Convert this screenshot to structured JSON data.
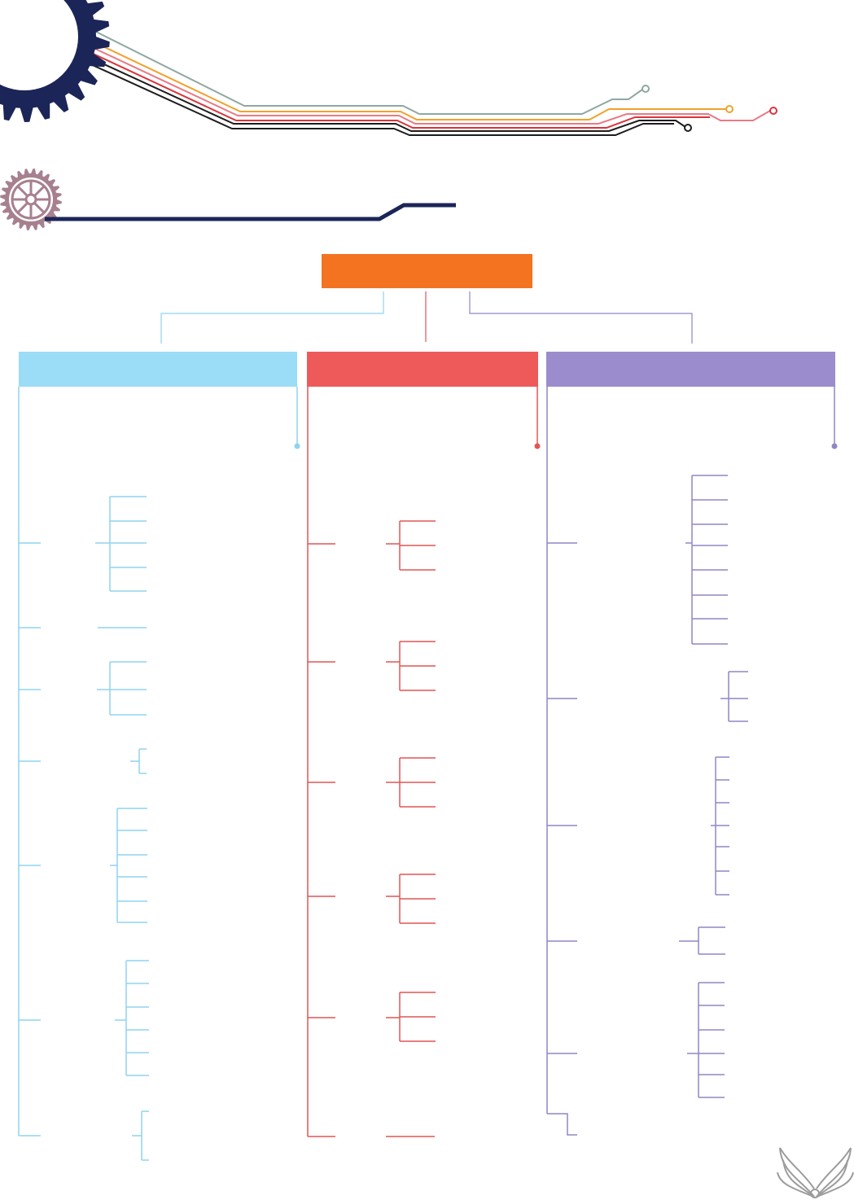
{
  "colors": {
    "navy": "#1b2557",
    "gear_mauve": "#a7808f",
    "root_orange": "#f37321",
    "blue": "#9bdcf7",
    "blue_line": "#8fd3ef",
    "red": "#ee5a5a",
    "red_line": "#e25555",
    "purple": "#9b8ccd",
    "purple_line": "#9186c4",
    "wire_gray": "#8fa8a0",
    "wire_orange": "#f2a12a",
    "wire_pink": "#e87a86",
    "wire_red": "#d9343b",
    "wire_black": "#1d1d1d",
    "wing_gray": "#9c9c9c"
  },
  "icons": {
    "corner_gear": "gear-icon",
    "small_gear": "gear-wheel-icon",
    "wings": "wings-logo-icon"
  },
  "root": {
    "label": ""
  },
  "columns": [
    {
      "header": "",
      "color_key": "blue",
      "groups": [
        {
          "branches": 5
        },
        {
          "branches": 1
        },
        {
          "branches": 3
        },
        {
          "branches": 2
        },
        {
          "branches": 6
        },
        {
          "branches": 6
        },
        {
          "branches": 2
        }
      ]
    },
    {
      "header": "",
      "color_key": "red",
      "groups": [
        {
          "branches": 3
        },
        {
          "branches": 3
        },
        {
          "branches": 3
        },
        {
          "branches": 3
        },
        {
          "branches": 3
        },
        {
          "branches": 1
        }
      ]
    },
    {
      "header": "",
      "color_key": "purple",
      "groups": [
        {
          "branches": 8
        },
        {
          "branches": 3
        },
        {
          "branches": 7
        },
        {
          "branches": 2
        },
        {
          "branches": 6
        },
        {
          "branches": 1
        }
      ]
    }
  ]
}
